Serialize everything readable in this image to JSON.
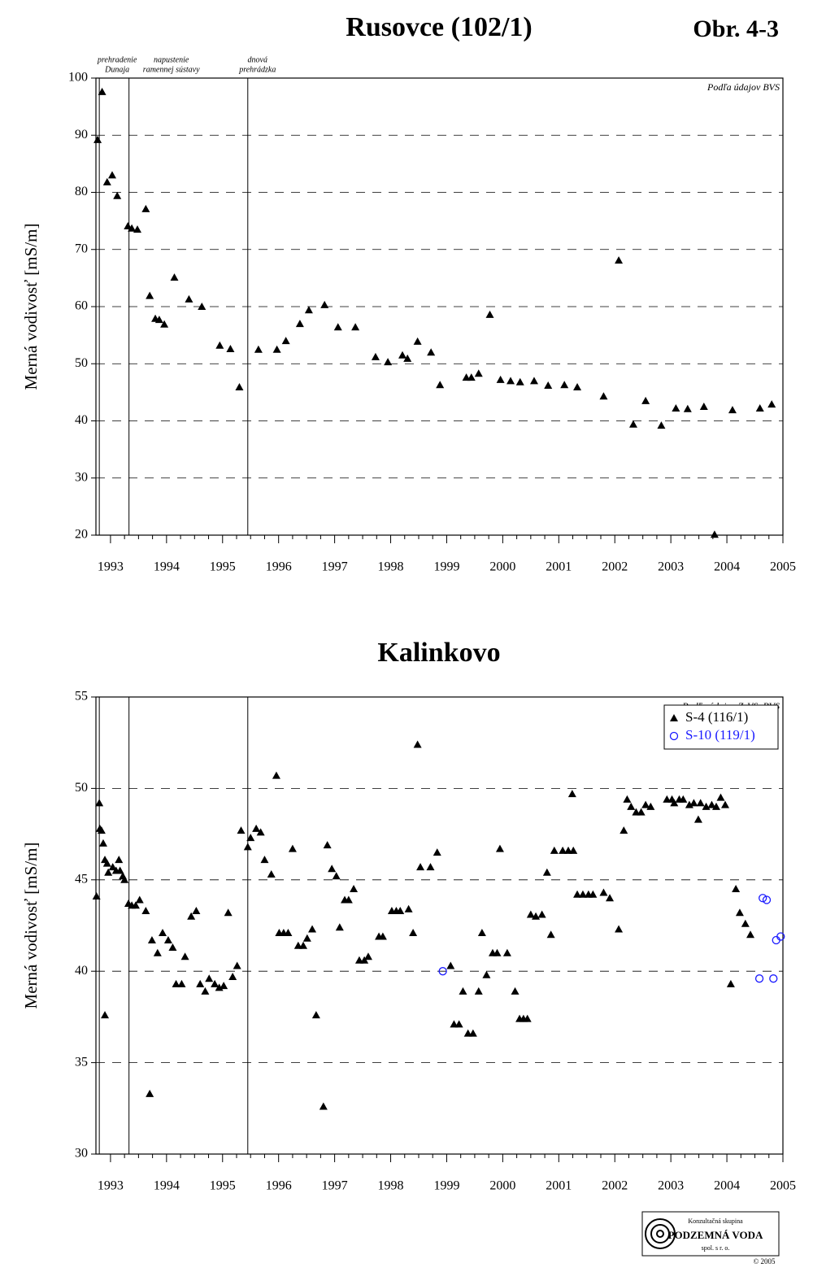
{
  "chart_data": [
    {
      "type": "scatter",
      "title": "Rusovce (102/1)",
      "figure_label": "Obr. 4-3",
      "ylabel": "Merná vodivosť [mS/m]",
      "note": "Podľa údajov BVS",
      "xlim": [
        1992.74,
        2005
      ],
      "xticks": [
        1993,
        1994,
        1995,
        1996,
        1997,
        1998,
        1999,
        2000,
        2001,
        2002,
        2003,
        2004,
        2005
      ],
      "ylim": [
        20,
        100
      ],
      "yticks": [
        20,
        30,
        40,
        50,
        60,
        70,
        80,
        90,
        100
      ],
      "grid": true,
      "events": [
        {
          "x": 1992.8,
          "label": [
            "prehradenie",
            "Dunaja"
          ]
        },
        {
          "x": 1993.33,
          "label": [
            "napustenie",
            "ramennej sústavy"
          ]
        },
        {
          "x": 1995.45,
          "label": [
            "dnová",
            "prehrádzka"
          ]
        }
      ],
      "series": [
        {
          "color": "#000000",
          "marker": "triangle",
          "x": [
            1992.77,
            1992.85,
            1992.94,
            1993.03,
            1993.12,
            1993.31,
            1993.38,
            1993.48,
            1993.63,
            1993.7,
            1993.8,
            1993.87,
            1993.96,
            1994.14,
            1994.4,
            1994.63,
            1994.95,
            1995.14,
            1995.3,
            1995.64,
            1995.97,
            1996.13,
            1996.38,
            1996.54,
            1996.82,
            1997.06,
            1997.37,
            1997.73,
            1997.95,
            1998.21,
            1998.3,
            1998.48,
            1998.72,
            1998.88,
            1999.35,
            1999.44,
            1999.57,
            1999.77,
            1999.96,
            2000.14,
            2000.31,
            2000.56,
            2000.81,
            2001.1,
            2001.33,
            2001.8,
            2002.07,
            2002.33,
            2002.55,
            2002.83,
            2003.09,
            2003.3,
            2003.59,
            2003.78,
            2004.1,
            2004.59,
            2004.8
          ],
          "values": [
            89.2,
            97.6,
            81.8,
            83.0,
            79.4,
            74.1,
            73.7,
            73.5,
            77.1,
            61.9,
            57.9,
            57.7,
            56.9,
            65.1,
            61.3,
            60.0,
            53.2,
            52.6,
            45.9,
            52.5,
            52.5,
            54.0,
            57.0,
            59.4,
            60.3,
            56.4,
            56.4,
            51.2,
            50.3,
            51.5,
            50.9,
            53.9,
            52.0,
            46.3,
            47.6,
            47.6,
            48.3,
            58.6,
            47.2,
            47.0,
            46.8,
            47.0,
            46.2,
            46.3,
            45.9,
            44.3,
            68.1,
            39.4,
            43.5,
            39.2,
            42.2,
            42.1,
            42.5,
            20.1,
            41.9,
            42.2,
            42.9
          ]
        }
      ]
    },
    {
      "type": "scatter",
      "title": "Kalinkovo",
      "ylabel": "Merná vodivosť [mS/m]",
      "note": "Podľa údajov ZsVS, BVS",
      "xlim": [
        1992.74,
        2005
      ],
      "xticks": [
        1993,
        1994,
        1995,
        1996,
        1997,
        1998,
        1999,
        2000,
        2001,
        2002,
        2003,
        2004,
        2005
      ],
      "ylim": [
        30,
        55
      ],
      "yticks": [
        30,
        35,
        40,
        45,
        50,
        55
      ],
      "grid": true,
      "legend": "upper right",
      "vlines": [
        1992.8,
        1993.33,
        1995.45
      ],
      "series": [
        {
          "name": "S-4 (116/1)",
          "color": "#000000",
          "marker": "triangle",
          "x": [
            1992.75,
            1992.8,
            1992.81,
            1992.84,
            1992.87,
            1992.9,
            1992.9,
            1992.94,
            1992.96,
            1993.04,
            1993.1,
            1993.15,
            1993.17,
            1993.22,
            1993.25,
            1993.32,
            1993.38,
            1993.45,
            1993.52,
            1993.63,
            1993.7,
            1993.74,
            1993.84,
            1993.93,
            1994.03,
            1994.11,
            1994.17,
            1994.27,
            1994.33,
            1994.44,
            1994.53,
            1994.6,
            1994.69,
            1994.76,
            1994.86,
            1994.94,
            1995.02,
            1995.1,
            1995.18,
            1995.26,
            1995.33,
            1995.45,
            1995.5,
            1995.6,
            1995.68,
            1995.75,
            1995.87,
            1995.96,
            1996.01,
            1996.09,
            1996.17,
            1996.25,
            1996.35,
            1996.44,
            1996.51,
            1996.6,
            1996.67,
            1996.8,
            1996.87,
            1996.95,
            1997.03,
            1997.09,
            1997.18,
            1997.25,
            1997.34,
            1997.44,
            1997.53,
            1997.6,
            1997.79,
            1997.86,
            1998.02,
            1998.1,
            1998.17,
            1998.32,
            1998.4,
            1998.48,
            1998.53,
            1998.71,
            1998.83,
            1999.07,
            1999.13,
            1999.22,
            1999.29,
            1999.38,
            1999.47,
            1999.57,
            1999.63,
            1999.71,
            1999.82,
            1999.9,
            1999.95,
            2000.08,
            2000.22,
            2000.3,
            2000.37,
            2000.44,
            2000.5,
            2000.59,
            2000.7,
            2000.79,
            2000.86,
            2000.92,
            2001.07,
            2001.17,
            2001.24,
            2001.26,
            2001.33,
            2001.43,
            2001.53,
            2001.61,
            2001.8,
            2001.91,
            2002.07,
            2002.16,
            2002.22,
            2002.29,
            2002.38,
            2002.47,
            2002.55,
            2002.64,
            2002.93,
            2003.02,
            2003.06,
            2003.15,
            2003.22,
            2003.33,
            2003.41,
            2003.49,
            2003.53,
            2003.63,
            2003.73,
            2003.81,
            2003.89,
            2003.97,
            2004.07,
            2004.16,
            2004.23,
            2004.33,
            2004.42
          ],
          "values": [
            44.1,
            49.2,
            47.8,
            47.7,
            47.0,
            37.6,
            46.1,
            45.9,
            45.4,
            45.7,
            45.5,
            46.1,
            45.5,
            45.2,
            45.0,
            43.7,
            43.6,
            43.6,
            43.9,
            43.3,
            33.3,
            41.7,
            41.0,
            42.1,
            41.7,
            41.3,
            39.3,
            39.3,
            40.8,
            43.0,
            43.3,
            39.3,
            38.9,
            39.6,
            39.3,
            39.1,
            39.2,
            43.2,
            39.7,
            40.3,
            47.7,
            46.8,
            47.3,
            47.8,
            47.6,
            46.1,
            45.3,
            50.7,
            42.1,
            42.1,
            42.1,
            46.7,
            41.4,
            41.4,
            41.8,
            42.3,
            37.6,
            32.6,
            46.9,
            45.6,
            45.2,
            42.4,
            43.9,
            43.9,
            44.5,
            40.6,
            40.6,
            40.8,
            41.9,
            41.9,
            43.3,
            43.3,
            43.3,
            43.4,
            42.1,
            52.4,
            45.7,
            45.7,
            46.5,
            40.3,
            37.1,
            37.1,
            38.9,
            36.6,
            36.6,
            38.9,
            42.1,
            39.8,
            41.0,
            41.0,
            46.7,
            41.0,
            38.9,
            37.4,
            37.4,
            37.4,
            43.1,
            43.0,
            43.1,
            45.4,
            42.0,
            46.6,
            46.6,
            46.6,
            49.7,
            46.6,
            44.2,
            44.2,
            44.2,
            44.2,
            44.3,
            44.0,
            42.3,
            47.7,
            49.4,
            49.0,
            48.7,
            48.7,
            49.1,
            49.0,
            49.4,
            49.4,
            49.2,
            49.4,
            49.4,
            49.1,
            49.2,
            48.3,
            49.2,
            49.0,
            49.1,
            49.0,
            49.5,
            49.1,
            39.3,
            44.5,
            43.2,
            42.6,
            42.0
          ]
        },
        {
          "name": "S-10 (119/1)",
          "color": "#1a1aff",
          "marker": "circle",
          "x": [
            1998.93,
            2004.58,
            2004.64,
            2004.71,
            2004.83,
            2004.88,
            2004.96
          ],
          "values": [
            40.0,
            39.6,
            44.0,
            43.9,
            39.6,
            41.7,
            41.9
          ]
        }
      ]
    }
  ],
  "logo": {
    "line1": "Konzultačná skupina",
    "line2": "PODZEMNÁ VODA",
    "line3": "spol. s r. o.",
    "copyright": "© 2005"
  }
}
